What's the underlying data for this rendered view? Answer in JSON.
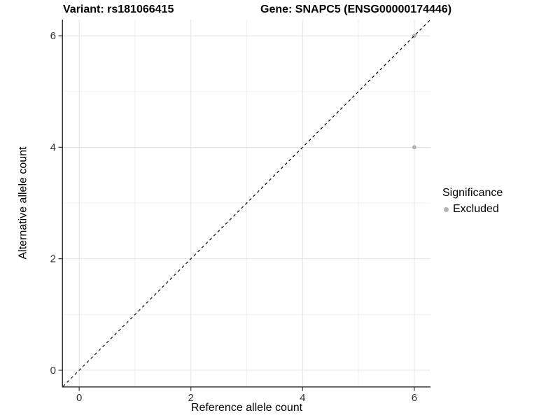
{
  "titles": {
    "variant": "Variant: rs181066415",
    "gene": "Gene: SNAPC5 (ENSG00000174446)"
  },
  "chart_data": {
    "type": "scatter",
    "xlabel": "Reference allele count",
    "ylabel": "Alternative allele count",
    "xlim": [
      -0.29,
      6.29
    ],
    "ylim": [
      -0.29,
      6.29
    ],
    "x_ticks": [
      0,
      2,
      4,
      6
    ],
    "y_ticks": [
      0,
      2,
      4,
      6
    ],
    "x_minor_ticks": [
      1,
      3,
      5
    ],
    "y_minor_ticks": [
      1,
      3,
      5
    ],
    "grid": "major+minor",
    "identity_line": {
      "from": [
        -0.29,
        -0.29
      ],
      "to": [
        6.29,
        6.29
      ],
      "style": "dashed",
      "color": "#000000"
    },
    "series": [
      {
        "name": "Excluded",
        "color": "#b3b3b3",
        "points": [
          [
            6,
            4
          ],
          [
            6,
            6
          ]
        ]
      }
    ],
    "legend": {
      "title": "Significance",
      "position": "right",
      "entries": [
        {
          "label": "Excluded",
          "color": "#b3b3b3"
        }
      ]
    }
  },
  "colors": {
    "background": "#ffffff",
    "grid_major": "#e3e3e3",
    "grid_minor": "#f0f0f0",
    "axis_line": "#333333",
    "tick_text": "#333333",
    "title_text": "#000000"
  }
}
